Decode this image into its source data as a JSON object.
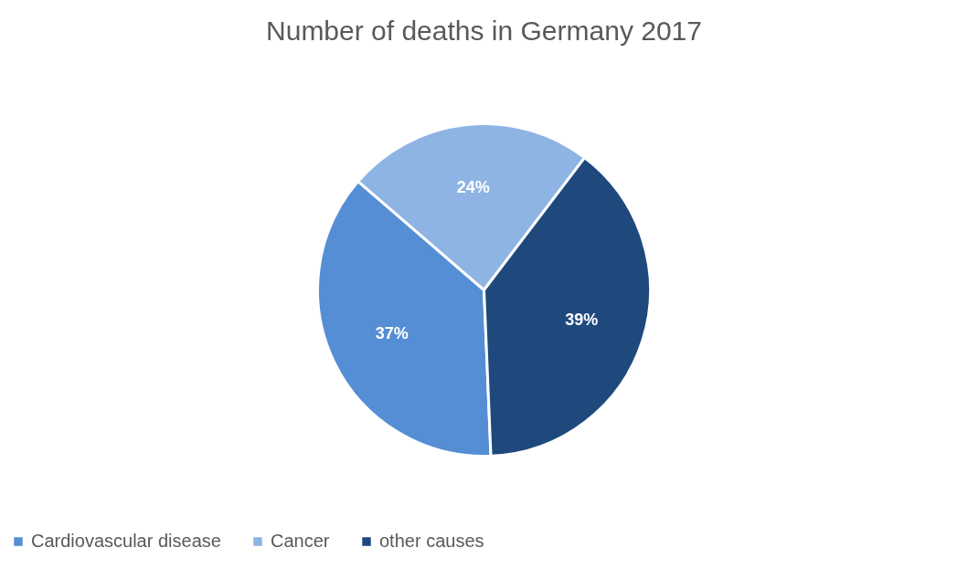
{
  "chart_data": {
    "type": "pie",
    "title": "Number of deaths in Germany 2017",
    "categories": [
      "Cardiovascular disease",
      "Cancer",
      "other causes"
    ],
    "values": [
      37,
      24,
      39
    ],
    "colors": [
      "#558ed5",
      "#8eb4e3",
      "#1f497d"
    ],
    "value_labels": [
      "37%",
      "24%",
      "39%"
    ],
    "legend": "bottom"
  }
}
